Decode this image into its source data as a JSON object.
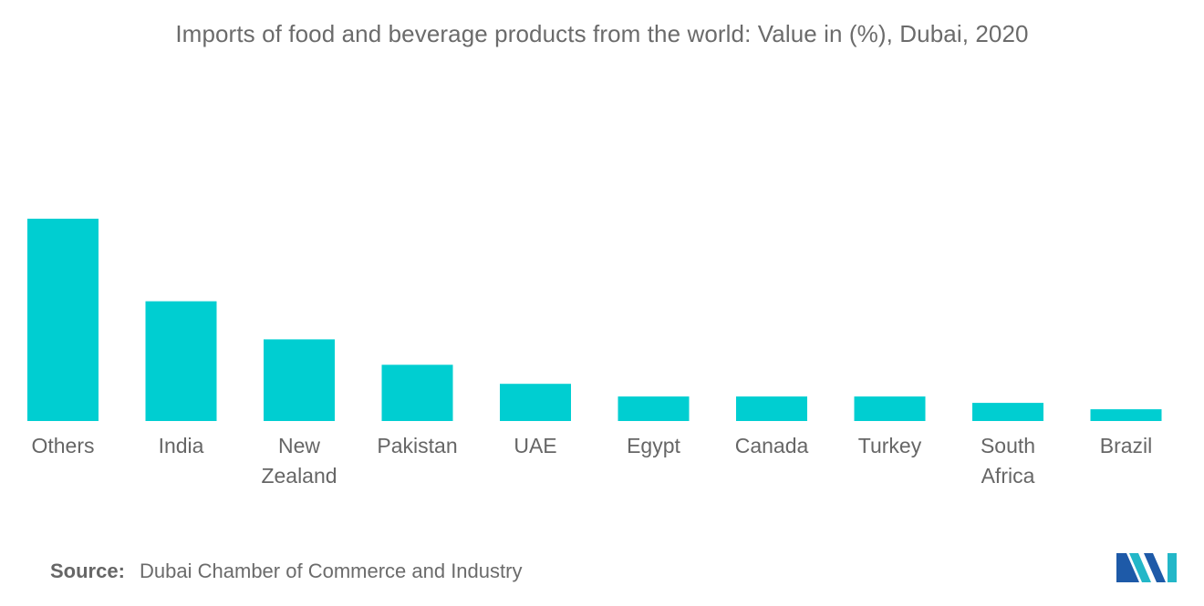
{
  "chart_data": {
    "type": "bar",
    "title": "Imports of food and beverage products from the world: Value in (%), Dubai,  2020",
    "categories": [
      [
        "Others"
      ],
      [
        "India"
      ],
      [
        "New",
        "Zealand"
      ],
      [
        "Pakistan"
      ],
      [
        "UAE"
      ],
      [
        "Egypt"
      ],
      [
        "Canada"
      ],
      [
        "Turkey"
      ],
      [
        "South",
        "Africa"
      ],
      [
        "Brazil"
      ]
    ],
    "values": [
      22.3,
      13.2,
      9.0,
      6.2,
      4.1,
      2.7,
      2.7,
      2.7,
      2.0,
      1.3
    ],
    "xlabel": "",
    "ylabel": "",
    "ylim": [
      0,
      22.3
    ],
    "grid": false,
    "legend": "none",
    "bar_color": "#00ced1"
  },
  "source": {
    "label": "Source:",
    "text": "Dubai Chamber of Commerce and Industry"
  },
  "logo": {
    "icon": "mordor-intelligence-logo",
    "colors": [
      "#1e5aa8",
      "#23b7c8"
    ]
  }
}
